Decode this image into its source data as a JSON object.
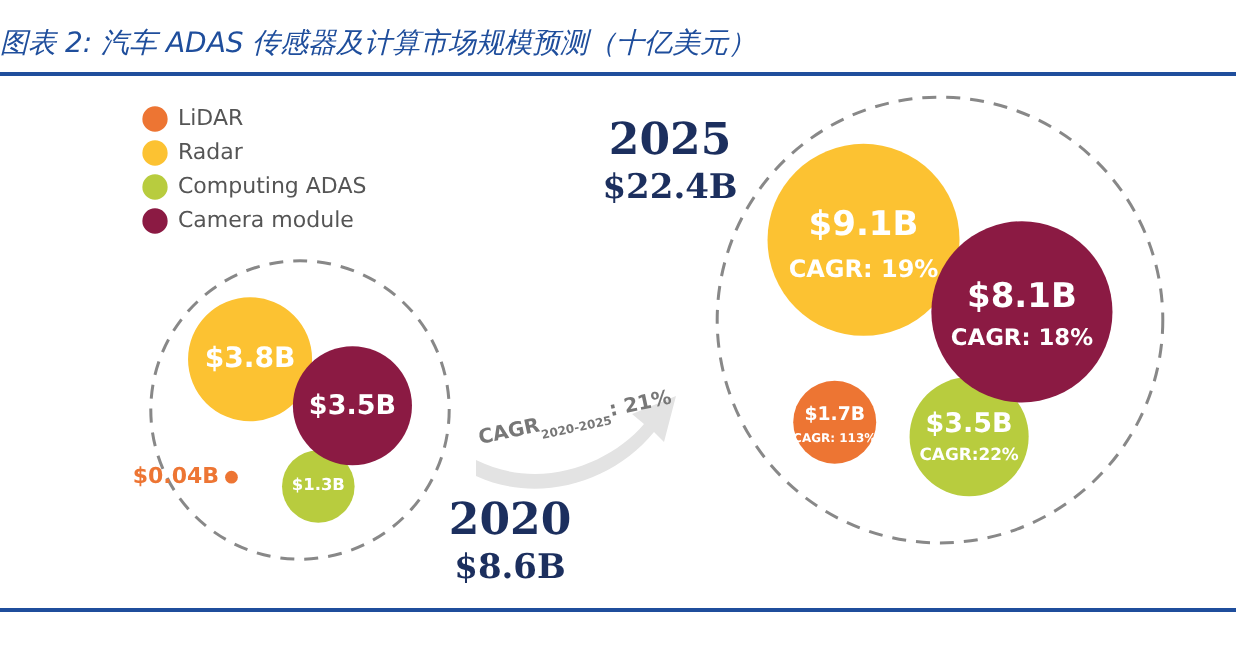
{
  "chart_data": {
    "type": "other",
    "title": "图表 2: 汽车 ADAS 传感器及计算市场规模预测（十亿美元）",
    "categories": [
      "2020",
      "2025"
    ],
    "series": [
      {
        "name": "LiDAR",
        "color": "#ed7533",
        "values": [
          0.04,
          1.7
        ],
        "value_labels": [
          "$0.04B",
          "$1.7B"
        ]
      },
      {
        "name": "Radar",
        "color": "#fcc232",
        "values": [
          3.8,
          9.1
        ],
        "value_labels": [
          "$3.8B",
          "$9.1B"
        ]
      },
      {
        "name": "Computing ADAS",
        "color": "#b8cc3e",
        "values": [
          1.3,
          3.5
        ],
        "value_labels": [
          "$1.3B",
          "$3.5B"
        ]
      },
      {
        "name": "Camera module",
        "color": "#8b1a43",
        "values": [
          3.5,
          8.1
        ],
        "value_labels": [
          "$3.5B",
          "$8.1B"
        ]
      }
    ],
    "totals": [
      "$8.6B",
      "$22.4B"
    ],
    "legend": "top left",
    "annotations": [
      "CAGR$_{2020-2025}$: 21%",
      "CAGR: 113%",
      "CAGR: 19%",
      "CAGR:22%",
      "CAGR: 18%"
    ]
  }
}
